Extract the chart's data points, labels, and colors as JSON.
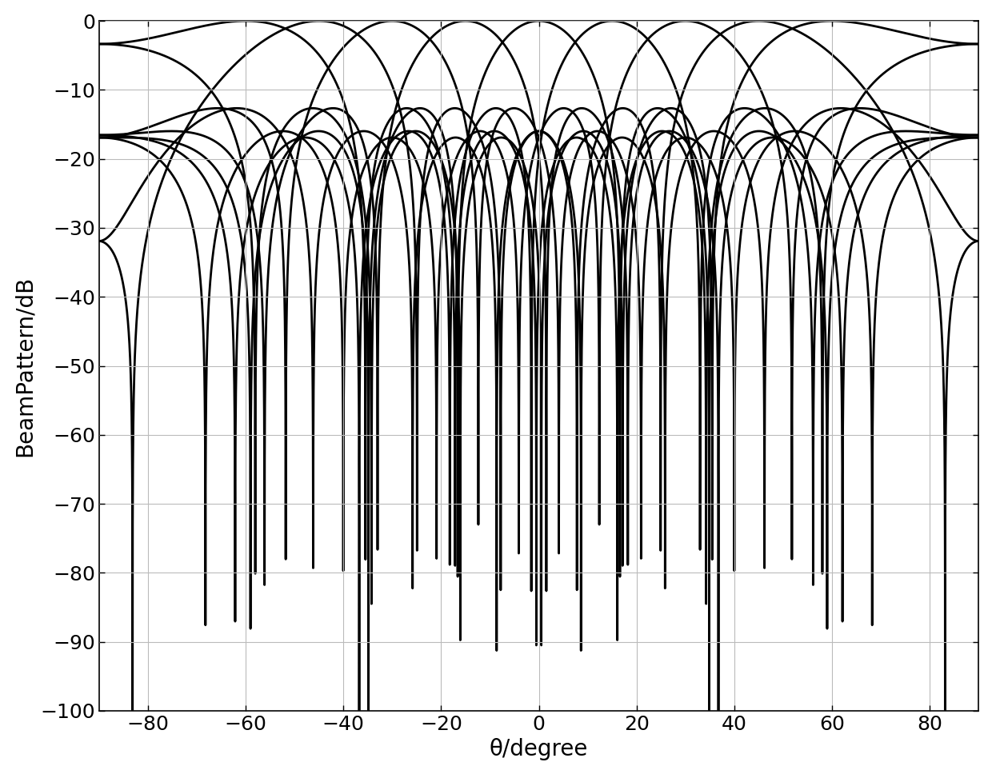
{
  "title": "",
  "xlabel": "θ/degree",
  "ylabel": "BeamPattern/dB",
  "xlim": [
    -90,
    90
  ],
  "ylim": [
    -100,
    0
  ],
  "xticks": [
    -80,
    -60,
    -40,
    -20,
    0,
    20,
    40,
    60,
    80
  ],
  "yticks": [
    0,
    -10,
    -20,
    -30,
    -40,
    -50,
    -60,
    -70,
    -80,
    -90,
    -100
  ],
  "num_elements": 7,
  "d_over_lambda": 0.5,
  "steering_angles_deg": [
    -60,
    -45,
    -30,
    -15,
    0,
    15,
    30,
    45,
    60
  ],
  "line_color": "#000000",
  "line_width": 2.0,
  "background_color": "#ffffff",
  "grid_color": "#bbbbbb",
  "fig_width": 12.4,
  "fig_height": 9.68,
  "dpi": 100
}
